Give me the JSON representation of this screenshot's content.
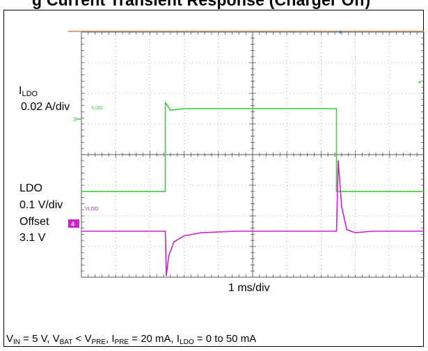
{
  "header": {
    "partial_title": "g  Current Transient Response (Charger Off)"
  },
  "channels": {
    "ildo": {
      "name": "I",
      "name_sub": "LDO",
      "scale": "0.02 A/div",
      "marker": "3",
      "trace_label": "ILDO",
      "color": "#3ccc3c"
    },
    "vldo": {
      "line1": "LDO",
      "scale": "0.1 V/div",
      "offset_label": "Offset",
      "offset_value": "3.1 V",
      "marker": "4",
      "trace_label": "VLDO",
      "color": "#cc22cc"
    }
  },
  "timebase": "1 ms/div",
  "caption": {
    "vin": "V",
    "vin_sub": "IN",
    "vin_val": " = 5 V, ",
    "vbat": "V",
    "vbat_sub": "BAT",
    "lt": " < ",
    "vpre": "V",
    "vpre_sub": "PRE",
    "comma1": ", ",
    "ipre": "I",
    "ipre_sub": "PRE",
    "ipre_val": " = 20 mA, ",
    "ildo": "I",
    "ildo_sub": "LDO",
    "ildo_val": " = 0 to 50 mA"
  },
  "chart_data": {
    "type": "line",
    "title": "",
    "xlabel": "1 ms/div",
    "grid": true,
    "divisions": {
      "x": 10,
      "y": 8
    },
    "series": [
      {
        "name": "ILDO",
        "unit": "div",
        "x": [
          0.0,
          2.45,
          2.45,
          2.6,
          3.0,
          5.0,
          7.45,
          7.45,
          7.5,
          10.0
        ],
        "values": [
          -1.2,
          -1.2,
          1.7,
          1.45,
          1.5,
          1.5,
          1.5,
          -1.2,
          -1.2,
          -1.2
        ]
      },
      {
        "name": "VLDO",
        "unit": "div",
        "x": [
          0.0,
          2.45,
          2.48,
          2.55,
          2.7,
          3.0,
          3.5,
          4.5,
          7.45,
          7.5,
          7.6,
          7.75,
          8.0,
          8.5,
          10.0
        ],
        "values": [
          -2.5,
          -2.5,
          -3.95,
          -3.3,
          -2.85,
          -2.65,
          -2.55,
          -2.5,
          -2.5,
          -0.2,
          -1.7,
          -2.45,
          -2.55,
          -2.5,
          -2.5
        ]
      }
    ]
  }
}
